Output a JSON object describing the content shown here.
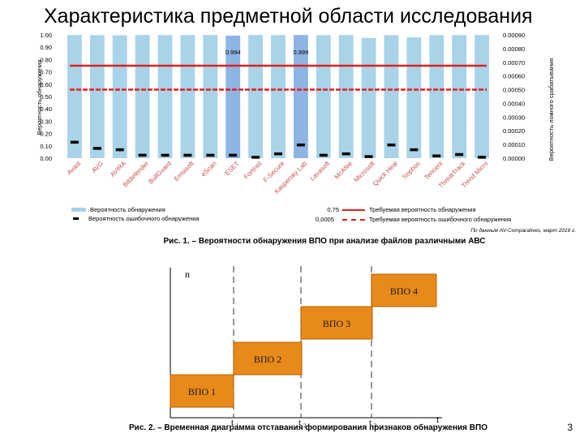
{
  "slide": {
    "title": "Характеристика предметной области исследования",
    "caption1": "Рис. 1. – Вероятности обнаружения ВПО при анализе файлов различными АВС",
    "source": "По данным AV-Comparatives, март 2016 г.",
    "caption2": "Рис. 2. – Временная диаграмма отставания формирования признаков обнаружения ВПО",
    "page_number": "3"
  },
  "chart_data": [
    {
      "type": "bar",
      "categories": [
        "Avast",
        "AVG",
        "AVIRA",
        "Bitdefender",
        "BullGuard",
        "Emsisoft",
        "eScan",
        "ESET",
        "Fortinet",
        "F-Secure",
        "Kaspersky Lab",
        "Lavasoft",
        "McAfee",
        "Microsoft",
        "Quick Heal",
        "Sophos",
        "Tencent",
        "ThreatTrack",
        "Trend Micro"
      ],
      "series": [
        {
          "name": "Вероятность обнаружения",
          "axis": "left",
          "color": "#a9d3e8",
          "values": [
            0.999,
            0.998,
            0.997,
            0.999,
            0.998,
            0.999,
            0.999,
            0.994,
            0.999,
            0.998,
            0.999,
            0.998,
            0.999,
            0.975,
            0.998,
            0.98,
            0.998,
            0.998,
            0.999
          ],
          "highlighted": [
            7,
            10
          ],
          "highlight_color": "#8eb4e3"
        },
        {
          "name": "Вероятность ошибочного обнаружения",
          "axis": "right",
          "color": "#000000",
          "values": [
            0.000115,
            7e-05,
            6e-05,
            2e-05,
            2e-05,
            2e-05,
            2e-05,
            2e-05,
            5e-06,
            3e-05,
            9.5e-05,
            2e-05,
            3e-05,
            1e-05,
            9.5e-05,
            6e-05,
            1.5e-05,
            2.5e-05,
            5e-06
          ]
        }
      ],
      "data_labels": [
        {
          "category": "ESET",
          "text": "0.994"
        },
        {
          "category": "Kaspersky Lab",
          "text": "0.999"
        }
      ],
      "ylabel": "Вероятность обнаружения",
      "y2label": "Вероятность ложного срабатывания",
      "ylim": [
        0,
        1
      ],
      "y2lim": [
        0,
        0.0009
      ],
      "y_ticks": [
        "0.00",
        "0.10",
        "0.20",
        "0.30",
        "0.40",
        "0.50",
        "0.60",
        "0.70",
        "0.80",
        "0.90",
        "1.00"
      ],
      "y2_ticks": [
        "0.00000",
        "0.00010",
        "0.00020",
        "0.00030",
        "0.00040",
        "0.00050",
        "0.00060",
        "0.00070",
        "0.00080",
        "0.00090"
      ],
      "reference_lines": [
        {
          "axis": "left",
          "value": 0.75,
          "label": "0,75",
          "legend": "Требуемая вероятность обнаружения",
          "color": "#e02020",
          "style": "solid"
        },
        {
          "axis": "right",
          "value": 0.0005,
          "label": "0,0005",
          "legend": "Требуемая вероятность ошибочного обнаружения",
          "color": "#e02020",
          "style": "dashed"
        }
      ]
    },
    {
      "type": "timeline",
      "ylabel": "n",
      "xlabel": "t",
      "ticks": [
        {
          "label": "t",
          "sub": "1"
        },
        {
          "label": "t",
          "sub": "2"
        },
        {
          "label": "t",
          "sub": "3"
        }
      ],
      "blocks": [
        "ВПО 1",
        "ВПО 2",
        "ВПО 3",
        "ВПО 4"
      ],
      "colors": {
        "block_fill": "#e88a1a",
        "block_border": "#b85f00"
      }
    }
  ]
}
